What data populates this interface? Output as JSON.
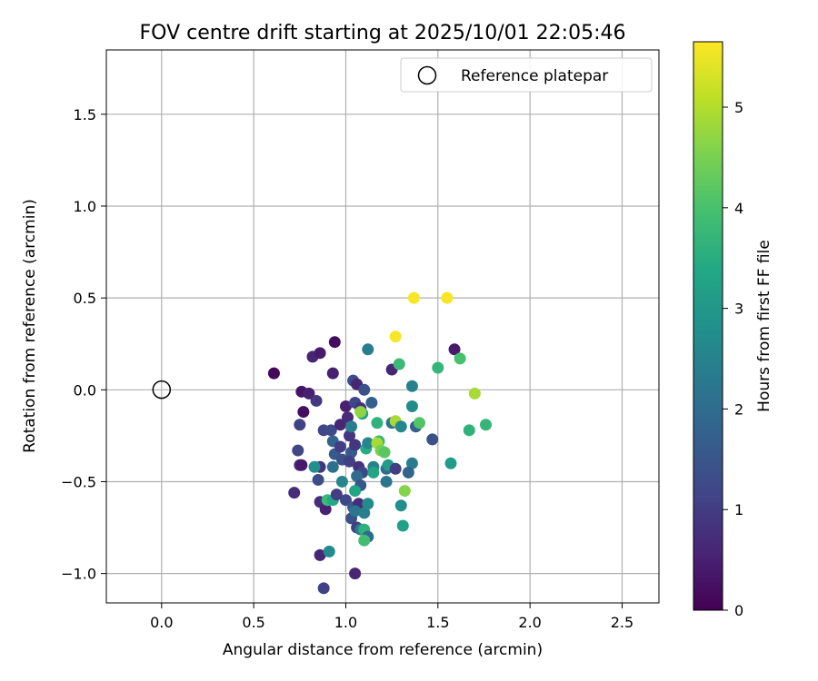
{
  "chart_data": {
    "type": "scatter",
    "title": "FOV centre drift starting at 2025/10/01 22:05:46",
    "xlabel": "Angular distance from reference (arcmin)",
    "ylabel": "Rotation from reference (arcmin)",
    "xlim": [
      -0.3,
      2.7
    ],
    "ylim": [
      -1.16,
      1.85
    ],
    "xticks": [
      "0.0",
      "0.5",
      "1.0",
      "1.5",
      "2.0",
      "2.5"
    ],
    "yticks": [
      "−1.0",
      "−0.5",
      "0.0",
      "0.5",
      "1.0",
      "1.5"
    ],
    "grid": true,
    "legend": {
      "placement": "top-right",
      "entries": [
        {
          "label": "Reference platepar",
          "marker": "open-circle"
        }
      ]
    },
    "colorbar": {
      "label": "Hours from first FF file",
      "colormap": "viridis",
      "range": [
        0,
        5.65
      ],
      "ticks": [
        "0",
        "1",
        "2",
        "3",
        "4",
        "5"
      ]
    },
    "reference_point": {
      "x": 0.0,
      "y": 0.0
    },
    "points": [
      {
        "x": 0.61,
        "y": 0.09,
        "h": 0.1
      },
      {
        "x": 0.76,
        "y": -0.01,
        "h": 0.3
      },
      {
        "x": 0.8,
        "y": -0.02,
        "h": 0.5
      },
      {
        "x": 0.77,
        "y": -0.12,
        "h": 0.2
      },
      {
        "x": 0.82,
        "y": 0.18,
        "h": 0.6
      },
      {
        "x": 0.86,
        "y": 0.2,
        "h": 0.4
      },
      {
        "x": 0.94,
        "y": 0.26,
        "h": 0.2
      },
      {
        "x": 0.93,
        "y": 0.09,
        "h": 0.5
      },
      {
        "x": 0.84,
        "y": -0.06,
        "h": 0.9
      },
      {
        "x": 0.75,
        "y": -0.19,
        "h": 1.1
      },
      {
        "x": 0.74,
        "y": -0.33,
        "h": 1.2
      },
      {
        "x": 0.75,
        "y": -0.41,
        "h": 0.8
      },
      {
        "x": 0.76,
        "y": -0.41,
        "h": 0.4
      },
      {
        "x": 0.72,
        "y": -0.56,
        "h": 0.7
      },
      {
        "x": 0.86,
        "y": -0.42,
        "h": 0.9
      },
      {
        "x": 0.85,
        "y": -0.49,
        "h": 1.3
      },
      {
        "x": 0.83,
        "y": -0.42,
        "h": 2.8
      },
      {
        "x": 0.88,
        "y": -0.22,
        "h": 1.2
      },
      {
        "x": 0.86,
        "y": -0.61,
        "h": 0.7
      },
      {
        "x": 0.89,
        "y": -0.65,
        "h": 0.5
      },
      {
        "x": 0.9,
        "y": -0.6,
        "h": 3.8
      },
      {
        "x": 0.93,
        "y": -0.6,
        "h": 3.4
      },
      {
        "x": 0.95,
        "y": -0.57,
        "h": 1.0
      },
      {
        "x": 0.86,
        "y": -0.9,
        "h": 0.6
      },
      {
        "x": 0.91,
        "y": -0.88,
        "h": 2.7
      },
      {
        "x": 0.88,
        "y": -1.08,
        "h": 1.1
      },
      {
        "x": 1.05,
        "y": -1.0,
        "h": 0.6
      },
      {
        "x": 0.92,
        "y": -0.22,
        "h": 1.3
      },
      {
        "x": 0.93,
        "y": -0.28,
        "h": 1.8
      },
      {
        "x": 0.94,
        "y": -0.35,
        "h": 1.6
      },
      {
        "x": 0.93,
        "y": -0.42,
        "h": 2.1
      },
      {
        "x": 0.97,
        "y": -0.19,
        "h": 0.6
      },
      {
        "x": 0.97,
        "y": -0.31,
        "h": 1.0
      },
      {
        "x": 0.98,
        "y": -0.38,
        "h": 1.4
      },
      {
        "x": 0.98,
        "y": -0.5,
        "h": 2.6
      },
      {
        "x": 1.0,
        "y": -0.6,
        "h": 1.2
      },
      {
        "x": 1.0,
        "y": -0.09,
        "h": 0.5
      },
      {
        "x": 1.01,
        "y": -0.15,
        "h": 0.7
      },
      {
        "x": 1.02,
        "y": -0.25,
        "h": 0.9
      },
      {
        "x": 1.03,
        "y": -0.2,
        "h": 2.4
      },
      {
        "x": 1.03,
        "y": -0.34,
        "h": 1.6
      },
      {
        "x": 1.02,
        "y": -0.39,
        "h": 1.1
      },
      {
        "x": 1.04,
        "y": 0.05,
        "h": 1.3
      },
      {
        "x": 1.06,
        "y": 0.03,
        "h": 0.6
      },
      {
        "x": 1.05,
        "y": -0.07,
        "h": 1.2
      },
      {
        "x": 1.08,
        "y": -0.1,
        "h": 0.8
      },
      {
        "x": 1.1,
        "y": -0.0,
        "h": 1.4
      },
      {
        "x": 1.09,
        "y": -0.13,
        "h": 3.2
      },
      {
        "x": 1.08,
        "y": -0.12,
        "h": 4.7
      },
      {
        "x": 1.14,
        "y": -0.07,
        "h": 1.7
      },
      {
        "x": 1.12,
        "y": 0.22,
        "h": 2.4
      },
      {
        "x": 1.05,
        "y": -0.3,
        "h": 0.9
      },
      {
        "x": 1.07,
        "y": -0.42,
        "h": 0.8
      },
      {
        "x": 1.09,
        "y": -0.45,
        "h": 1.2
      },
      {
        "x": 1.06,
        "y": -0.47,
        "h": 2.0
      },
      {
        "x": 1.08,
        "y": -0.52,
        "h": 1.5
      },
      {
        "x": 1.05,
        "y": -0.55,
        "h": 3.3
      },
      {
        "x": 1.04,
        "y": -0.64,
        "h": 1.6
      },
      {
        "x": 1.07,
        "y": -0.62,
        "h": 0.7
      },
      {
        "x": 1.03,
        "y": -0.7,
        "h": 1.4
      },
      {
        "x": 1.06,
        "y": -0.75,
        "h": 1.0
      },
      {
        "x": 1.05,
        "y": -0.66,
        "h": 2.2
      },
      {
        "x": 1.1,
        "y": -0.67,
        "h": 2.4
      },
      {
        "x": 1.12,
        "y": -0.62,
        "h": 2.7
      },
      {
        "x": 1.08,
        "y": -0.76,
        "h": 2.3
      },
      {
        "x": 1.1,
        "y": -0.76,
        "h": 3.6
      },
      {
        "x": 1.12,
        "y": -0.8,
        "h": 1.9
      },
      {
        "x": 1.1,
        "y": -0.82,
        "h": 3.9
      },
      {
        "x": 1.11,
        "y": -0.32,
        "h": 3.5
      },
      {
        "x": 1.12,
        "y": -0.29,
        "h": 2.6
      },
      {
        "x": 1.15,
        "y": -0.42,
        "h": 2.5
      },
      {
        "x": 1.15,
        "y": -0.45,
        "h": 3.3
      },
      {
        "x": 1.17,
        "y": -0.18,
        "h": 3.6
      },
      {
        "x": 1.18,
        "y": -0.28,
        "h": 3.7
      },
      {
        "x": 1.17,
        "y": -0.29,
        "h": 4.9
      },
      {
        "x": 1.19,
        "y": -0.33,
        "h": 4.5
      },
      {
        "x": 1.21,
        "y": -0.34,
        "h": 4.2
      },
      {
        "x": 1.22,
        "y": -0.43,
        "h": 2.0
      },
      {
        "x": 1.23,
        "y": -0.41,
        "h": 3.1
      },
      {
        "x": 1.22,
        "y": -0.5,
        "h": 2.2
      },
      {
        "x": 1.25,
        "y": -0.18,
        "h": 2.1
      },
      {
        "x": 1.27,
        "y": -0.17,
        "h": 4.9
      },
      {
        "x": 1.3,
        "y": -0.2,
        "h": 2.6
      },
      {
        "x": 1.27,
        "y": -0.43,
        "h": 1.0
      },
      {
        "x": 1.25,
        "y": 0.11,
        "h": 0.6
      },
      {
        "x": 1.27,
        "y": 0.29,
        "h": 5.6
      },
      {
        "x": 1.29,
        "y": 0.14,
        "h": 3.8
      },
      {
        "x": 1.37,
        "y": 0.5,
        "h": 5.6
      },
      {
        "x": 1.55,
        "y": 0.5,
        "h": 5.6
      },
      {
        "x": 1.59,
        "y": 0.22,
        "h": 0.4
      },
      {
        "x": 1.5,
        "y": 0.12,
        "h": 3.7
      },
      {
        "x": 1.62,
        "y": 0.17,
        "h": 4.0
      },
      {
        "x": 1.7,
        "y": -0.02,
        "h": 4.9
      },
      {
        "x": 1.36,
        "y": 0.02,
        "h": 2.5
      },
      {
        "x": 1.36,
        "y": -0.09,
        "h": 2.7
      },
      {
        "x": 1.38,
        "y": -0.2,
        "h": 1.7
      },
      {
        "x": 1.4,
        "y": -0.18,
        "h": 4.1
      },
      {
        "x": 1.47,
        "y": -0.27,
        "h": 1.4
      },
      {
        "x": 1.36,
        "y": -0.4,
        "h": 2.4
      },
      {
        "x": 1.34,
        "y": -0.45,
        "h": 1.8
      },
      {
        "x": 1.32,
        "y": -0.55,
        "h": 4.6
      },
      {
        "x": 1.3,
        "y": -0.63,
        "h": 2.8
      },
      {
        "x": 1.31,
        "y": -0.74,
        "h": 3.2
      },
      {
        "x": 1.57,
        "y": -0.4,
        "h": 3.1
      },
      {
        "x": 1.67,
        "y": -0.22,
        "h": 3.6
      },
      {
        "x": 1.76,
        "y": -0.19,
        "h": 3.7
      }
    ]
  }
}
